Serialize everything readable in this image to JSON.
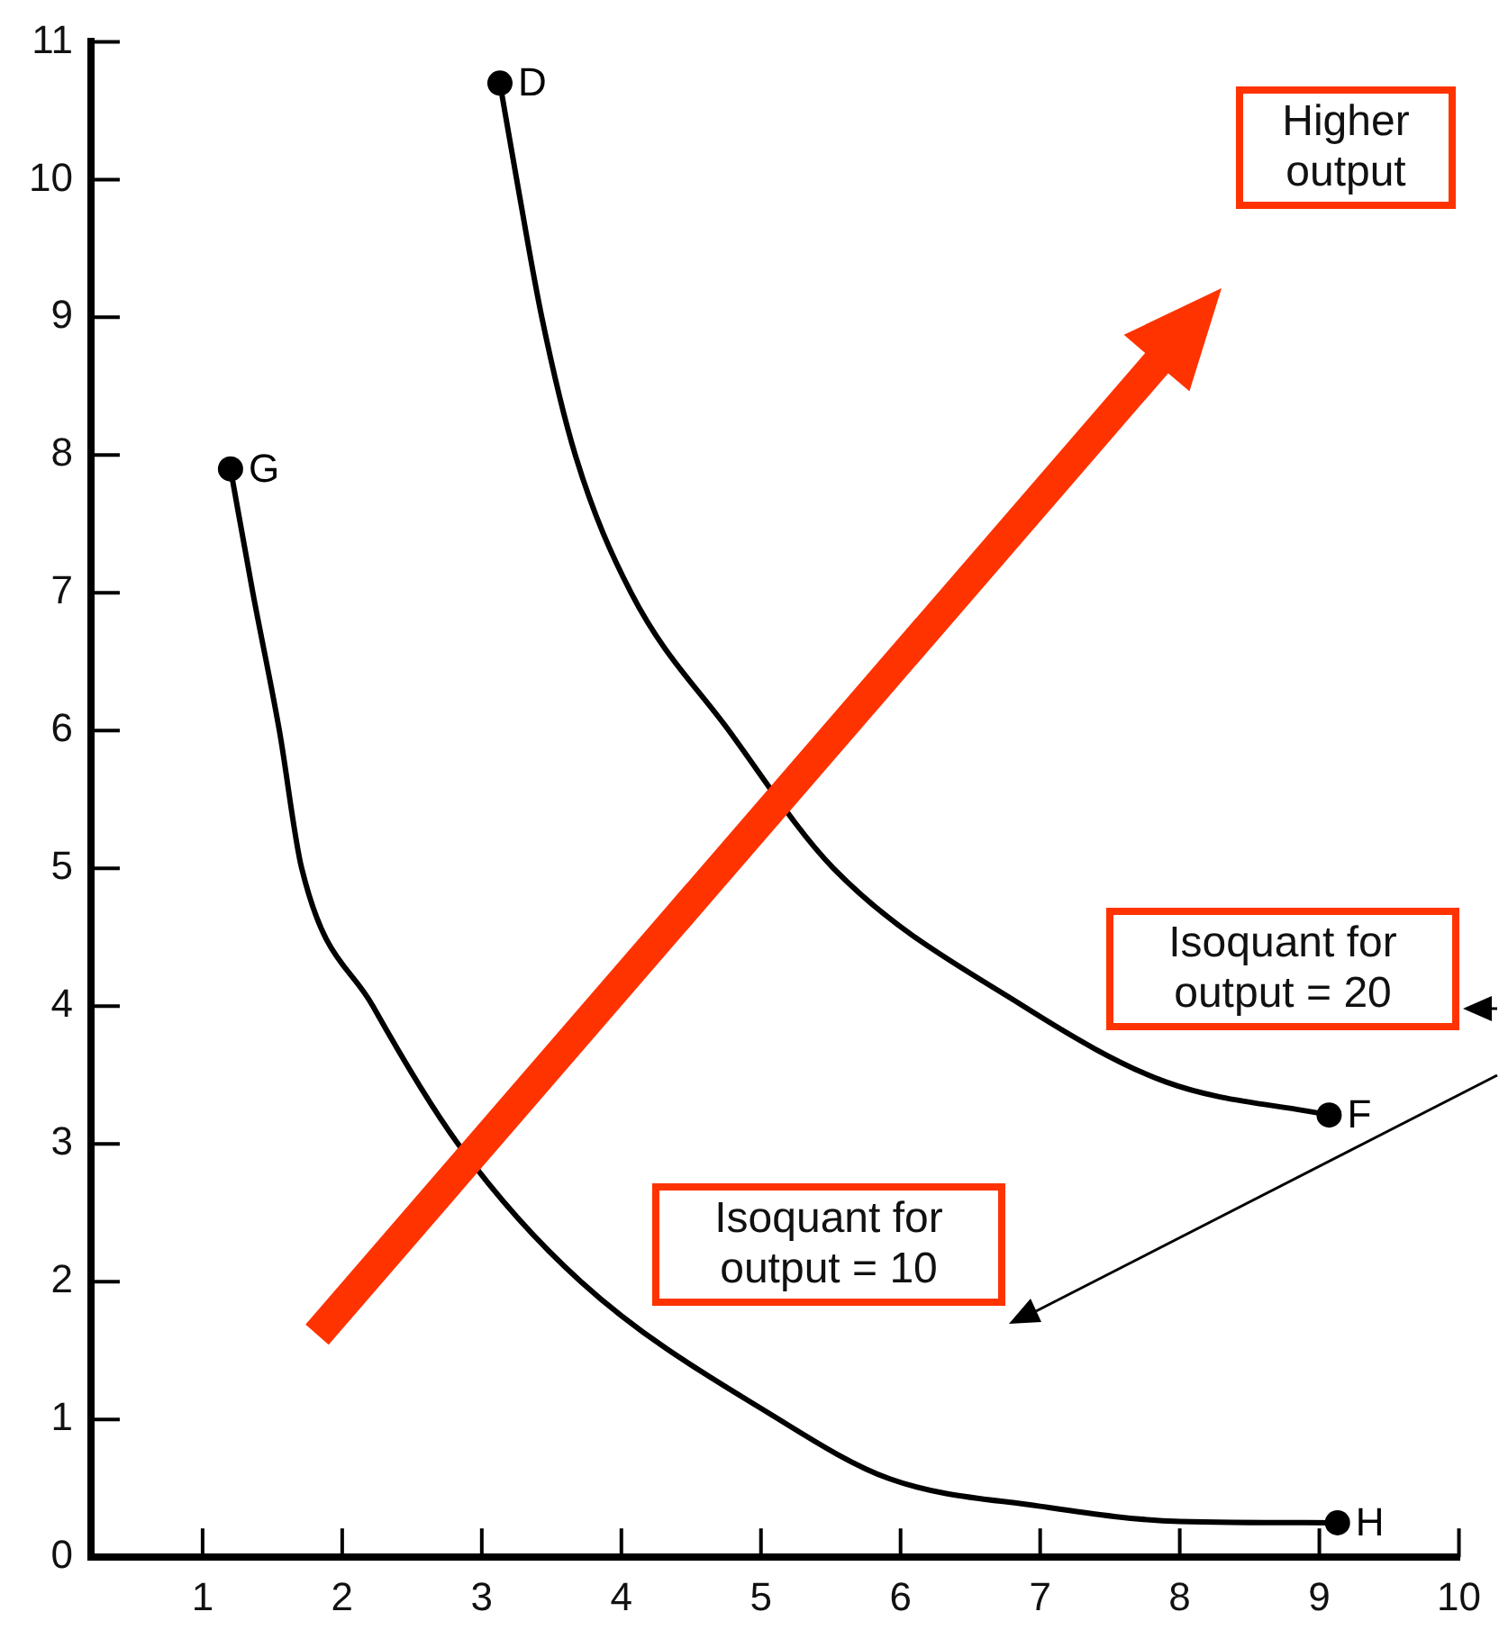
{
  "chart_data": {
    "type": "line",
    "xlim": [
      0.2,
      10
    ],
    "ylim": [
      0,
      11
    ],
    "xticks": [
      1,
      2,
      3,
      4,
      5,
      6,
      7,
      8,
      9,
      10
    ],
    "yticks": [
      0,
      1,
      2,
      3,
      4,
      5,
      6,
      7,
      8,
      9,
      10,
      11
    ],
    "grid": false,
    "legend": false,
    "marker": "none",
    "line_style": "solid",
    "series": [
      {
        "color": "#000000",
        "x": [
          1.2,
          1.36,
          1.55,
          1.71,
          2.22,
          2.83,
          3.71,
          5.13,
          5.92,
          7.0,
          8.0,
          9.13
        ],
        "values": [
          7.9,
          7.0,
          6.0,
          5.0,
          4.0,
          3.0,
          2.0,
          1.0,
          0.57,
          0.37,
          0.26,
          0.25
        ]
      },
      {
        "color": "#000000",
        "x": [
          3.13,
          3.25,
          3.43,
          3.67,
          4.07,
          4.77,
          5.52,
          6.88,
          7.9,
          9.07
        ],
        "values": [
          10.7,
          10.0,
          9.0,
          8.0,
          7.0,
          6.0,
          5.0,
          4.0,
          3.45,
          3.21
        ]
      }
    ],
    "annotations": [
      "Higher output",
      "Isoquant for output = 20",
      "Isoquant for output = 10",
      {
        "text": "D",
        "x": 3.13,
        "y": 10.7
      },
      {
        "text": "G",
        "x": 1.2,
        "y": 7.9
      },
      {
        "text": "F",
        "x": 9.07,
        "y": 3.21
      },
      {
        "text": "H",
        "x": 9.13,
        "y": 0.25
      }
    ]
  }
}
